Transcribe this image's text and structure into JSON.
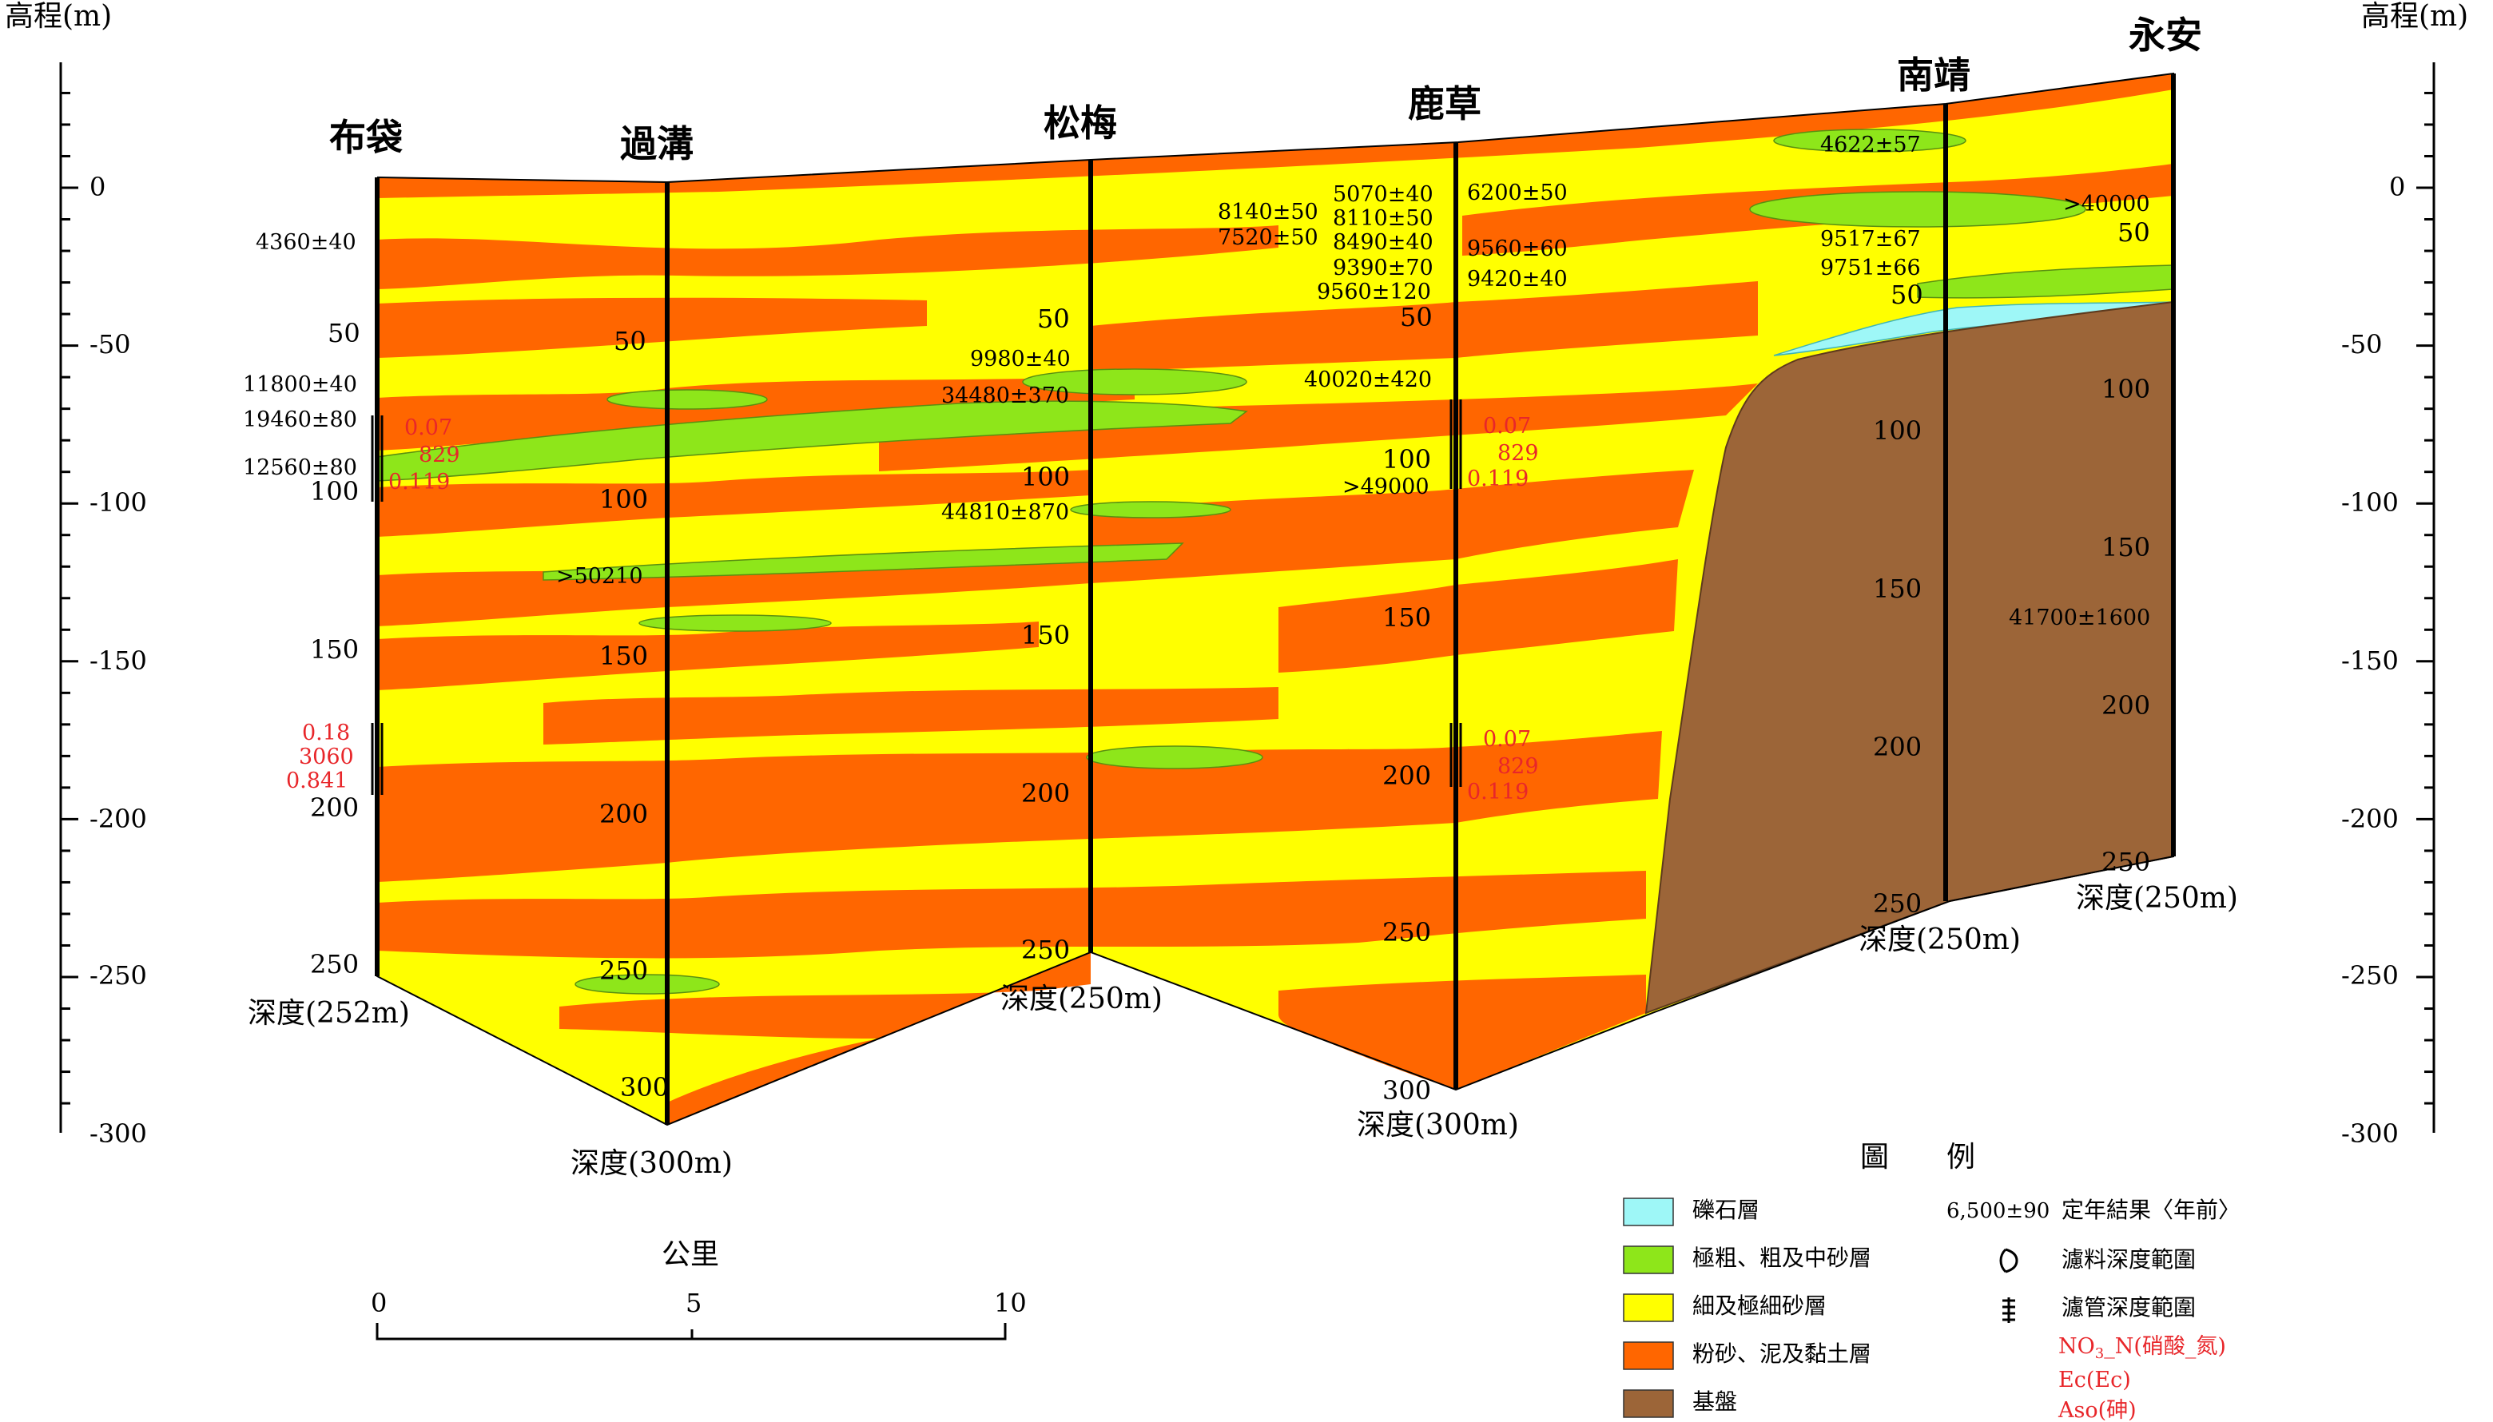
{
  "axes": {
    "left_title": "高程(m)",
    "right_title": "高程(m)",
    "ticks": [
      "0",
      "-50",
      "-100",
      "-150",
      "-200",
      "-250",
      "-300"
    ]
  },
  "wells": [
    {
      "name": "布袋",
      "depth_label": "深度(252m)",
      "depth_ticks": [
        "50",
        "100",
        "150",
        "200",
        "250"
      ],
      "ages": [
        "4360±40",
        "11800±40",
        "19460±80",
        "12560±80"
      ],
      "chem_upper": [
        "0.07",
        "829",
        "0.119"
      ],
      "chem_lower": [
        "0.18",
        "3060",
        "0.841"
      ]
    },
    {
      "name": "過溝",
      "depth_label": "深度(300m)",
      "depth_ticks": [
        "50",
        "100",
        "150",
        "200",
        "250",
        "300"
      ],
      "ages": [
        ">50210"
      ]
    },
    {
      "name": "松梅",
      "depth_label": "深度(250m)",
      "depth_ticks": [
        "50",
        "100",
        "150",
        "200",
        "250"
      ],
      "ages_left": [
        "8140±50",
        "7520±50",
        "9980±40",
        "34480±370",
        "44810±870"
      ]
    },
    {
      "name": "鹿草",
      "depth_label": "深度(300m)",
      "depth_ticks": [
        "50",
        "100",
        "150",
        "200",
        "250",
        "300"
      ],
      "ages_left": [
        "5070±40",
        "8110±50",
        "8490±40",
        "9390±70",
        "9560±120",
        "40020±420",
        ">49000"
      ],
      "ages_right": [
        "6200±50",
        "9560±60",
        "9420±40"
      ],
      "chem_upper": [
        "0.07",
        "829",
        "0.119"
      ],
      "chem_lower": [
        "0.07",
        "829",
        "0.119"
      ]
    },
    {
      "name": "南靖",
      "depth_label": "深度(250m)",
      "depth_ticks": [
        "50",
        "100",
        "150",
        "200",
        "250"
      ],
      "ages": [
        "4622±57",
        "9517±67",
        "9751±66"
      ]
    },
    {
      "name": "永安",
      "depth_label": "深度(250m)",
      "depth_ticks": [
        "50",
        "100",
        "150",
        "200",
        "250"
      ],
      "ages": [
        ">40000",
        "41700±1600"
      ]
    }
  ],
  "scale_bar": {
    "title": "公里",
    "ticks": [
      "0",
      "5",
      "10"
    ]
  },
  "legend": {
    "title": "圖　　例",
    "layers": [
      {
        "label": "礫石層",
        "color": "#9ef7f7"
      },
      {
        "label": "極粗、粗及中砂層",
        "color": "#8ee61a"
      },
      {
        "label": "細及極細砂層",
        "color": "#ffff00"
      },
      {
        "label": "粉砂、泥及黏土層",
        "color": "#ff6600"
      },
      {
        "label": "基盤",
        "color": "#9c6538"
      }
    ],
    "symbols": [
      {
        "example": "6,500±90",
        "label": "定年結果〈年前〉"
      },
      {
        "label": "濾料深度範圍"
      },
      {
        "label": "濾管深度範圍"
      }
    ],
    "chem": {
      "no3_prefix": "NO",
      "no3_sub": "3",
      "no3_suffix": "_N(硝酸_氮)",
      "ec": "Ec(Ec)",
      "as": "Aso(砷)"
    }
  },
  "colors": {
    "sand_fine": "#ffff00",
    "clay": "#ff6600",
    "sand_coarse": "#8ee61a",
    "gravel": "#9ef7f7",
    "bedrock": "#9c6538"
  }
}
